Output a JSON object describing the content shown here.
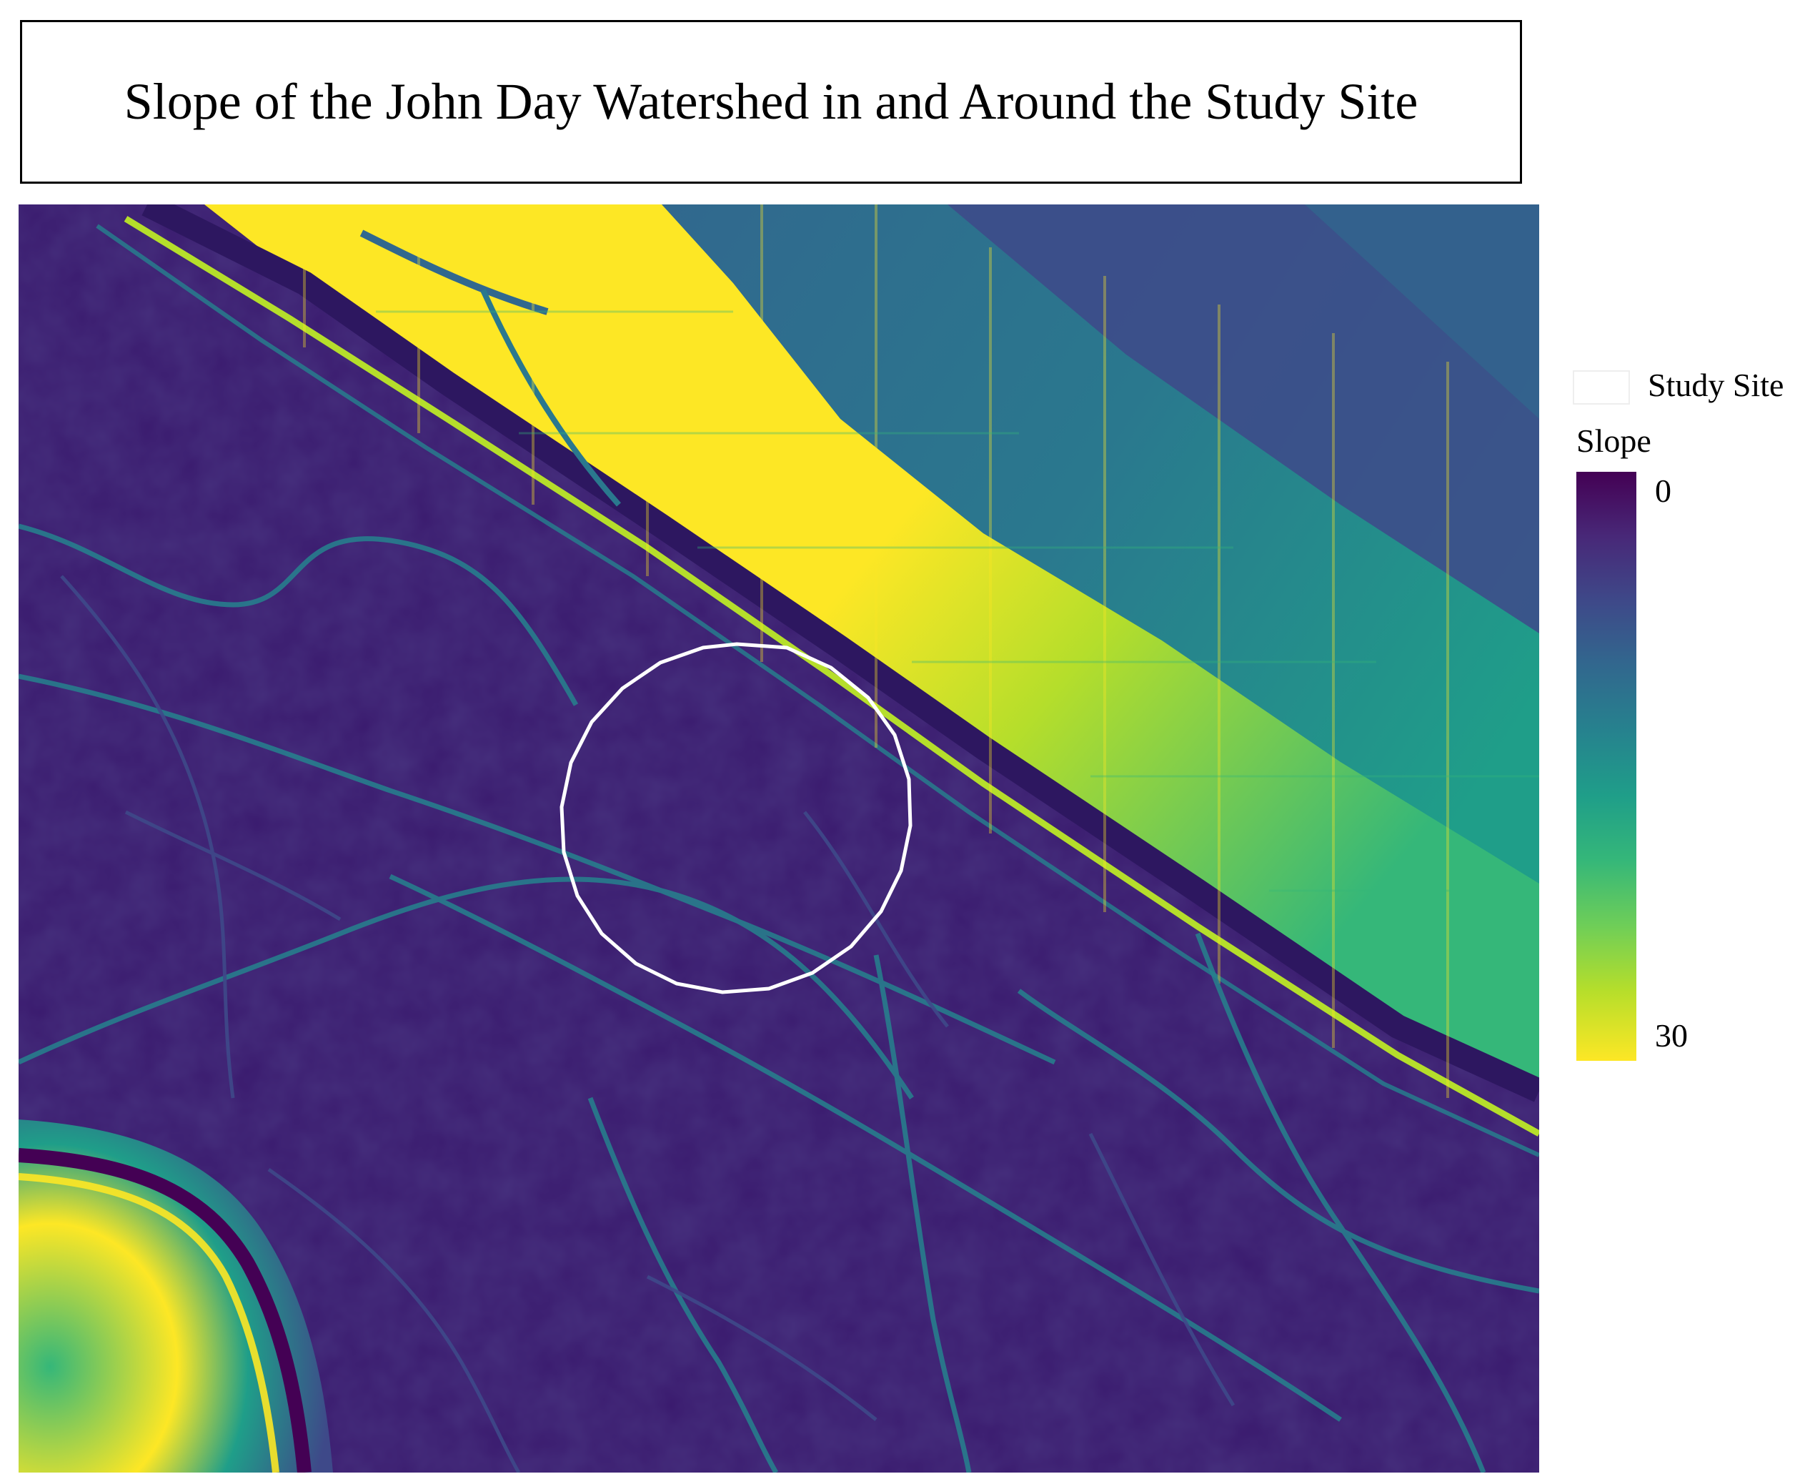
{
  "title": "Slope of the John Day Watershed in and Around the Study Site",
  "legend": {
    "site_label": "Study Site",
    "scale_title": "Slope",
    "scale_min_label": "0",
    "scale_max_label": "30",
    "scale_range": [
      0,
      30
    ],
    "colormap": "viridis",
    "colors": [
      "#440154",
      "#3e4989",
      "#26828e",
      "#35b779",
      "#fde725"
    ]
  },
  "map": {
    "study_site_outline_color": "#ffffff",
    "study_site_shape": "circle"
  }
}
